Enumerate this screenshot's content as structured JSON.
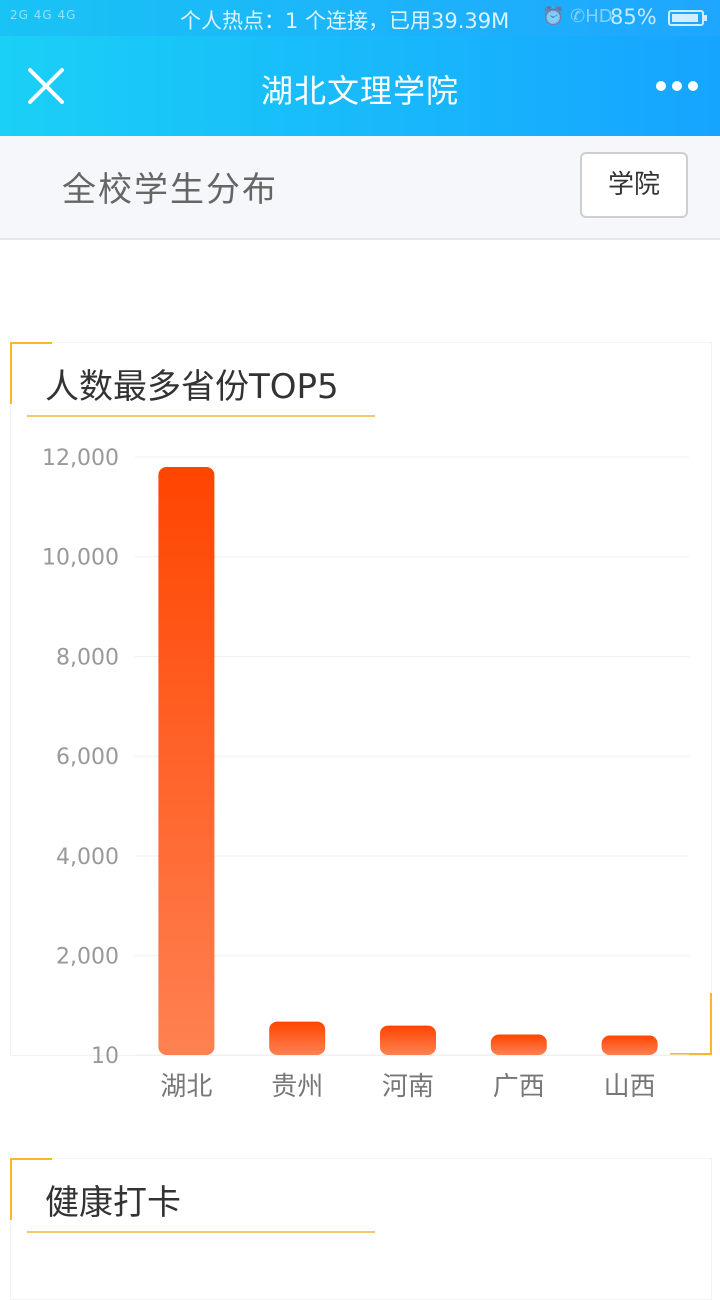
{
  "status_bar": {
    "signal": "2G 4G 4G",
    "hotspot_text": "个人热点：1 个连接，已用39.39M",
    "icons": "⏰ ✆HD",
    "battery_pct": "85%"
  },
  "navbar": {
    "title": "湖北文理学院",
    "close_icon": "close-icon",
    "more_icon": "more-icon"
  },
  "subheader": {
    "title": "全校学生分布",
    "button_label": "学院"
  },
  "top5_card": {
    "title": "人数最多省份TOP5"
  },
  "health_card": {
    "title": "健康打卡"
  },
  "colors": {
    "accent": "#f7b733",
    "bar_top": "#ff4500",
    "bar_bottom": "#ff8152",
    "nav_start": "#1ad0f6",
    "nav_end": "#16a4ff"
  },
  "chart_data": {
    "type": "bar",
    "categories": [
      "湖北",
      "贵州",
      "河南",
      "广西",
      "山西"
    ],
    "values": [
      11800,
      680,
      600,
      420,
      400
    ],
    "ylim": [
      10,
      12000
    ],
    "y_ticks": [
      10,
      2000,
      4000,
      6000,
      8000,
      10000,
      12000
    ],
    "y_tick_labels": [
      "10",
      "2,000",
      "4,000",
      "6,000",
      "8,000",
      "10,000",
      "12,000"
    ],
    "grid": true,
    "legend": "none",
    "title": "人数最多省份TOP5",
    "xlabel": "",
    "ylabel": ""
  }
}
